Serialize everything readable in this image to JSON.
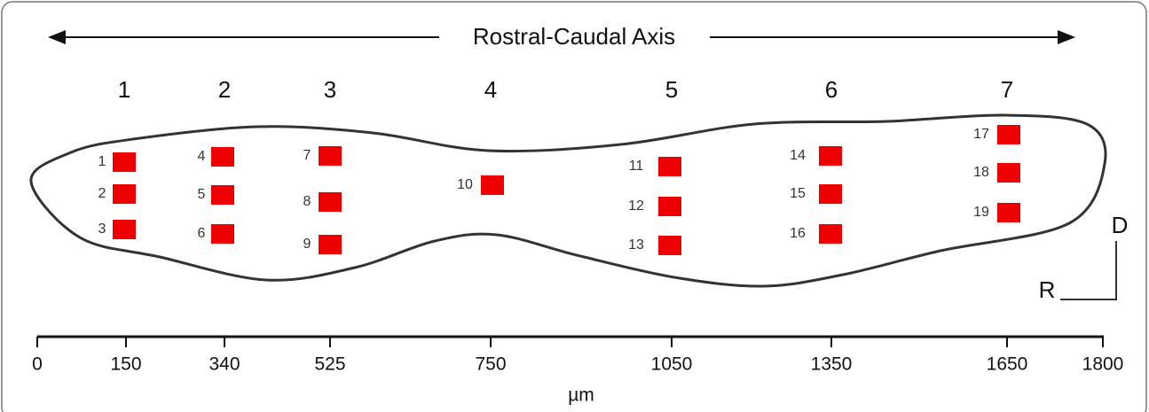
{
  "axis_title": "Rostral-Caudal Axis",
  "groups": [
    "1",
    "2",
    "3",
    "4",
    "5",
    "6",
    "7"
  ],
  "sites": [
    "1",
    "2",
    "3",
    "4",
    "5",
    "6",
    "7",
    "8",
    "9",
    "10",
    "11",
    "12",
    "13",
    "14",
    "15",
    "16",
    "17",
    "18",
    "19"
  ],
  "scale": {
    "ticks": [
      0,
      150,
      340,
      525,
      750,
      1050,
      1350,
      1650,
      1800
    ],
    "unit": "µm"
  },
  "orientation": {
    "dorsal": "D",
    "rostral": "R"
  }
}
